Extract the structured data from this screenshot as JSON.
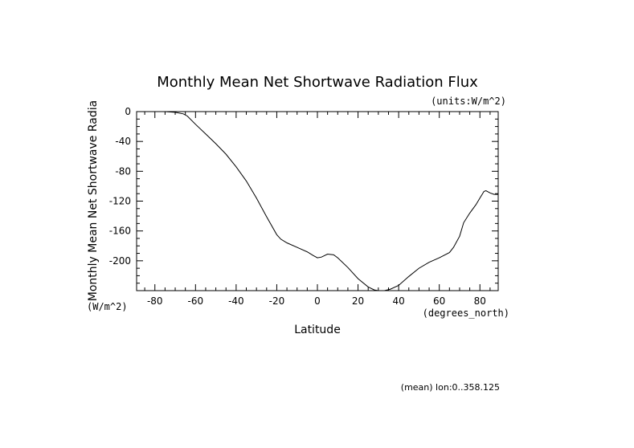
{
  "chart_data": {
    "type": "line",
    "title": "Monthly Mean Net Shortwave Radiation Flux",
    "units_note": "(units:W/m^2)",
    "xlabel": "Latitude",
    "x_units": "(degrees_north)",
    "ylabel": "Monthly Mean Net Shortwave Radia",
    "y_units": "(W/m^2)",
    "footnote": "(mean) lon:0..358.125",
    "xlim": [
      -89,
      89
    ],
    "ylim": [
      -240,
      0
    ],
    "x_ticks": [
      -80,
      -60,
      -40,
      -20,
      0,
      20,
      40,
      60,
      80
    ],
    "x_tick_labels": [
      "-80",
      "-60",
      "-40",
      "-20",
      "0",
      "20",
      "40",
      "60",
      "80"
    ],
    "y_ticks": [
      0,
      -40,
      -80,
      -120,
      -160,
      -200
    ],
    "y_tick_labels": [
      "0",
      "-40",
      "-80",
      "-120",
      "-160",
      "-200"
    ],
    "grid": false,
    "series": [
      {
        "x": [
          -75,
          -70,
          -66,
          -64,
          -60,
          -55,
          -50,
          -45,
          -40,
          -35,
          -30,
          -25,
          -20,
          -18,
          -15,
          -10,
          -5,
          -2,
          0,
          2,
          5,
          8,
          10,
          15,
          20,
          25,
          28,
          30,
          33,
          36,
          40,
          45,
          50,
          55,
          60,
          65,
          67,
          70,
          72,
          75,
          78,
          80,
          82,
          83,
          85,
          87,
          89
        ],
        "y": [
          0,
          -1,
          -3,
          -6,
          -17,
          -30,
          -43,
          -57,
          -74,
          -93,
          -116,
          -141,
          -165,
          -171,
          -176,
          -182,
          -188,
          -193,
          -196,
          -195,
          -191,
          -192,
          -196,
          -209,
          -224,
          -235,
          -239,
          -240,
          -240,
          -238,
          -233,
          -221,
          -210,
          -202,
          -196,
          -189,
          -182,
          -167,
          -149,
          -136,
          -125,
          -116,
          -107,
          -106,
          -109,
          -111,
          -111
        ]
      }
    ]
  }
}
